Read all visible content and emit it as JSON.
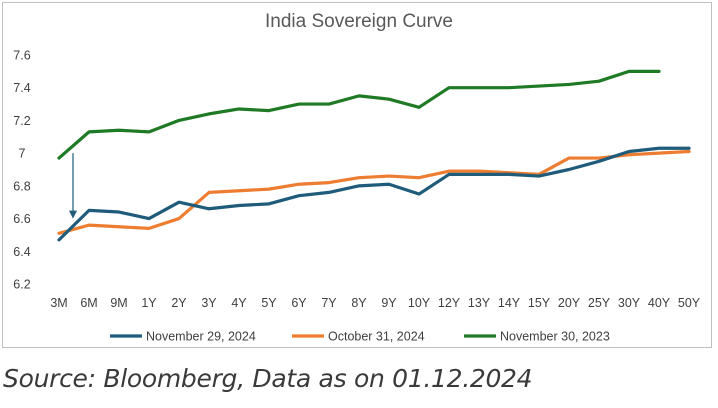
{
  "chart_data": {
    "type": "line",
    "title": "India Sovereign Curve",
    "xlabel": "",
    "ylabel": "",
    "categories": [
      "3M",
      "6M",
      "9M",
      "1Y",
      "2Y",
      "3Y",
      "4Y",
      "5Y",
      "6Y",
      "7Y",
      "8Y",
      "9Y",
      "10Y",
      "12Y",
      "13Y",
      "14Y",
      "15Y",
      "20Y",
      "25Y",
      "30Y",
      "40Y",
      "50Y"
    ],
    "ylim": [
      6.2,
      7.6
    ],
    "yticks": [
      6.2,
      6.4,
      6.6,
      6.8,
      7,
      7.2,
      7.4,
      7.6
    ],
    "ytick_labels": [
      "6.2",
      "6.4",
      "6.6",
      "6.8",
      "7",
      "7.2",
      "7.4",
      "7.6"
    ],
    "grid": false,
    "legend_position": "bottom",
    "series": [
      {
        "name": "November 29, 2024",
        "color": "#1f5b7a",
        "values": [
          6.47,
          6.65,
          6.64,
          6.6,
          6.7,
          6.66,
          6.68,
          6.69,
          6.74,
          6.76,
          6.8,
          6.81,
          6.75,
          6.87,
          6.87,
          6.87,
          6.86,
          6.9,
          6.95,
          7.01,
          7.03,
          7.03
        ]
      },
      {
        "name": "October 31, 2024",
        "color": "#ed7d31",
        "values": [
          6.51,
          6.56,
          6.55,
          6.54,
          6.6,
          6.76,
          6.77,
          6.78,
          6.81,
          6.82,
          6.85,
          6.86,
          6.85,
          6.89,
          6.89,
          6.88,
          6.87,
          6.97,
          6.97,
          6.99,
          7.0,
          7.01
        ]
      },
      {
        "name": "November 30, 2023",
        "color": "#1e7a24",
        "values": [
          6.97,
          7.13,
          7.14,
          7.13,
          7.2,
          7.24,
          7.27,
          7.26,
          7.3,
          7.3,
          7.35,
          7.33,
          7.28,
          7.4,
          7.4,
          7.4,
          7.41,
          7.42,
          7.44,
          7.5,
          7.5,
          null
        ]
      }
    ],
    "annotations": [
      {
        "type": "arrow",
        "color": "#1f5b7a",
        "from": {
          "category": "3M",
          "y": 7.0
        },
        "to": {
          "category": "3M",
          "y": 6.6
        }
      }
    ]
  },
  "source_note": "Source: Bloomberg, Data as on 01.12.2024"
}
